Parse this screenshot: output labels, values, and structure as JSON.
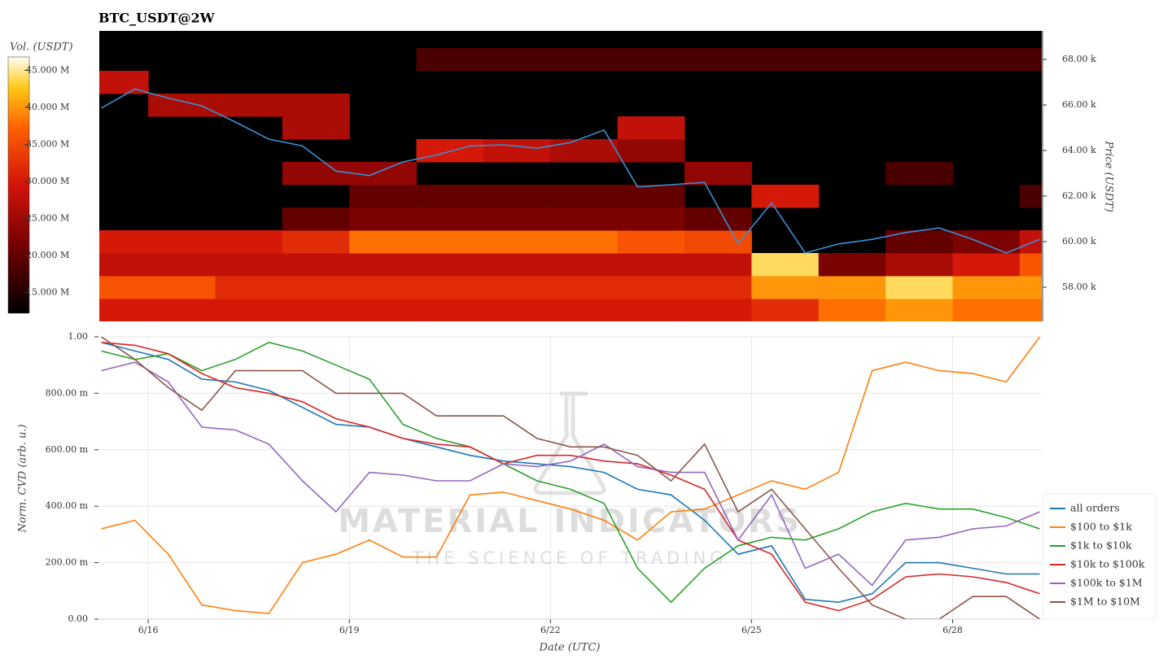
{
  "chart_data": [
    {
      "type": "heatmap",
      "title": "BTC_USDT@2W",
      "colorbar_label": "Vol. (USDT)",
      "ylabel": "Price (USDT)",
      "xlim": [
        15.27,
        29.33
      ],
      "ylim": [
        56500,
        69250
      ],
      "yticks": [
        {
          "value": 58000,
          "label": "58.00 k"
        },
        {
          "value": 60000,
          "label": "60.00 k"
        },
        {
          "value": 62000,
          "label": "62.00 k"
        },
        {
          "value": 64000,
          "label": "64.00 k"
        },
        {
          "value": 66000,
          "label": "66.00 k"
        },
        {
          "value": 68000,
          "label": "68.00 k"
        }
      ],
      "zlim": [
        12200000,
        46800000
      ],
      "zticks": [
        {
          "value": 15000000,
          "label": "15.000 M"
        },
        {
          "value": 20000000,
          "label": "20.000 M"
        },
        {
          "value": 25000000,
          "label": "25.000 M"
        },
        {
          "value": 30000000,
          "label": "30.000 M"
        },
        {
          "value": 35000000,
          "label": "35.000 M"
        },
        {
          "value": 40000000,
          "label": "40.000 M"
        },
        {
          "value": 45000000,
          "label": "45.000 M"
        }
      ],
      "x_edges": [
        15.27,
        16,
        17,
        18,
        19,
        20,
        21,
        22,
        23,
        24,
        25,
        26,
        27,
        28,
        29,
        29.33
      ],
      "y": [
        57000,
        58000,
        59000,
        60000,
        61000,
        62000,
        63000,
        64000,
        65000,
        66000,
        67000,
        68000
      ],
      "z": [
        [
          30000000,
          30000000,
          30000000,
          30000000,
          30000000,
          30000000,
          30000000,
          30000000,
          30000000,
          30000000,
          32000000,
          38000000,
          40000000,
          38000000,
          38000000
        ],
        [
          36000000,
          36000000,
          32000000,
          32000000,
          32000000,
          32000000,
          32000000,
          32000000,
          32000000,
          32000000,
          40000000,
          40000000,
          44000000,
          40000000,
          40000000
        ],
        [
          28000000,
          28000000,
          28000000,
          28000000,
          28000000,
          28000000,
          28000000,
          28000000,
          28000000,
          28000000,
          44000000,
          22000000,
          26000000,
          30000000,
          36000000
        ],
        [
          30000000,
          30000000,
          30000000,
          32000000,
          38000000,
          38000000,
          38000000,
          38000000,
          36000000,
          35000000,
          null,
          null,
          20000000,
          22000000,
          28000000
        ],
        [
          null,
          null,
          null,
          20000000,
          22000000,
          22000000,
          22000000,
          22000000,
          22000000,
          20000000,
          null,
          null,
          null,
          null,
          null
        ],
        [
          null,
          null,
          null,
          null,
          20000000,
          20000000,
          20000000,
          20000000,
          20000000,
          null,
          30000000,
          null,
          null,
          null,
          18000000
        ],
        [
          null,
          null,
          null,
          24000000,
          24000000,
          null,
          null,
          null,
          null,
          24000000,
          null,
          null,
          18000000,
          null,
          null
        ],
        [
          null,
          null,
          null,
          null,
          null,
          30000000,
          28000000,
          26000000,
          24000000,
          null,
          null,
          null,
          null,
          null,
          null
        ],
        [
          null,
          null,
          null,
          26000000,
          null,
          null,
          null,
          null,
          28000000,
          null,
          null,
          null,
          null,
          null,
          null
        ],
        [
          null,
          26000000,
          26000000,
          26000000,
          null,
          null,
          null,
          null,
          null,
          null,
          null,
          null,
          null,
          null,
          null
        ],
        [
          28000000,
          null,
          null,
          null,
          null,
          null,
          null,
          null,
          null,
          null,
          null,
          null,
          null,
          null,
          null
        ],
        [
          null,
          null,
          null,
          null,
          null,
          18000000,
          18000000,
          18000000,
          18000000,
          18000000,
          18000000,
          18000000,
          18000000,
          18000000,
          18000000
        ]
      ],
      "x": [
        15.3,
        15.8,
        16.3,
        16.8,
        17.3,
        17.8,
        18.3,
        18.8,
        19.3,
        19.8,
        20.3,
        20.8,
        21.3,
        21.8,
        22.3,
        22.8,
        23.3,
        23.8,
        24.3,
        24.8,
        25.3,
        25.8,
        26.3,
        26.8,
        27.3,
        27.8,
        28.3,
        28.8,
        29.3
      ],
      "price": {
        "color": "#3b8fd4",
        "values": [
          65860,
          66700,
          66300,
          65960,
          65250,
          64500,
          64200,
          63100,
          62900,
          63500,
          63800,
          64200,
          64250,
          64100,
          64350,
          64900,
          62400,
          62500,
          62600,
          59900,
          61700,
          59500,
          59900,
          60100,
          60400,
          60600,
          60100,
          59500,
          60100
        ]
      }
    },
    {
      "type": "line",
      "xlabel": "Date (UTC)",
      "ylabel": "Norm. CVD (arb. u.)",
      "xlim": [
        15.27,
        29.33
      ],
      "xticks": [
        {
          "value": 16,
          "label": "6/16"
        },
        {
          "value": 19,
          "label": "6/19"
        },
        {
          "value": 22,
          "label": "6/22"
        },
        {
          "value": 25,
          "label": "6/25"
        },
        {
          "value": 28,
          "label": "6/28"
        }
      ],
      "ylim": [
        0,
        1
      ],
      "yticks": [
        {
          "value": 0,
          "label": "0.00"
        },
        {
          "value": 0.2,
          "label": "200.00 m"
        },
        {
          "value": 0.4,
          "label": "400.00 m"
        },
        {
          "value": 0.6,
          "label": "600.00 m"
        },
        {
          "value": 0.8,
          "label": "800.00 m"
        },
        {
          "value": 1,
          "label": "1.00"
        }
      ],
      "grid": true,
      "legend": "right",
      "watermark": {
        "title": "MATERIAL INDICATORS",
        "subtitle": "THE SCIENCE OF TRADING"
      },
      "x": [
        15.3,
        15.8,
        16.3,
        16.8,
        17.3,
        17.8,
        18.3,
        18.8,
        19.3,
        19.8,
        20.3,
        20.8,
        21.3,
        21.8,
        22.3,
        22.8,
        23.3,
        23.8,
        24.3,
        24.8,
        25.3,
        25.8,
        26.3,
        26.8,
        27.3,
        27.8,
        28.3,
        28.8,
        29.3
      ],
      "series": [
        {
          "name": "all orders",
          "color": "#1f77b4",
          "values": [
            0.98,
            0.95,
            0.92,
            0.85,
            0.84,
            0.81,
            0.75,
            0.69,
            0.68,
            0.64,
            0.61,
            0.58,
            0.56,
            0.55,
            0.54,
            0.52,
            0.46,
            0.44,
            0.35,
            0.23,
            0.26,
            0.07,
            0.06,
            0.09,
            0.2,
            0.2,
            0.18,
            0.16,
            0.16
          ]
        },
        {
          "name": "$100 to $1k",
          "color": "#ff7f0e",
          "values": [
            0.32,
            0.35,
            0.23,
            0.05,
            0.03,
            0.02,
            0.2,
            0.23,
            0.28,
            0.22,
            0.22,
            0.44,
            0.45,
            0.42,
            0.39,
            0.35,
            0.28,
            0.38,
            0.39,
            0.44,
            0.49,
            0.46,
            0.52,
            0.88,
            0.91,
            0.88,
            0.87,
            0.84,
            1.0
          ]
        },
        {
          "name": "$1k to $10k",
          "color": "#2ca02c",
          "values": [
            0.95,
            0.92,
            0.94,
            0.88,
            0.92,
            0.98,
            0.95,
            0.9,
            0.85,
            0.69,
            0.64,
            0.61,
            0.55,
            0.49,
            0.46,
            0.41,
            0.18,
            0.06,
            0.18,
            0.26,
            0.29,
            0.28,
            0.32,
            0.38,
            0.41,
            0.39,
            0.39,
            0.36,
            0.32
          ]
        },
        {
          "name": "$10k to $100k",
          "color": "#d62728",
          "values": [
            0.98,
            0.97,
            0.94,
            0.87,
            0.82,
            0.8,
            0.77,
            0.71,
            0.68,
            0.64,
            0.62,
            0.61,
            0.55,
            0.58,
            0.58,
            0.56,
            0.55,
            0.51,
            0.46,
            0.28,
            0.23,
            0.06,
            0.03,
            0.07,
            0.15,
            0.16,
            0.15,
            0.13,
            0.09
          ]
        },
        {
          "name": "$100k to $1M",
          "color": "#9467bd",
          "values": [
            0.88,
            0.91,
            0.84,
            0.68,
            0.67,
            0.62,
            0.49,
            0.38,
            0.52,
            0.51,
            0.49,
            0.49,
            0.55,
            0.54,
            0.56,
            0.62,
            0.54,
            0.52,
            0.52,
            0.28,
            0.44,
            0.18,
            0.23,
            0.12,
            0.28,
            0.29,
            0.32,
            0.33,
            0.38
          ]
        },
        {
          "name": "$1M to $10M",
          "color": "#8c564b",
          "values": [
            1.0,
            0.92,
            0.82,
            0.74,
            0.88,
            0.88,
            0.88,
            0.8,
            0.8,
            0.8,
            0.72,
            0.72,
            0.72,
            0.64,
            0.61,
            0.61,
            0.58,
            0.49,
            0.62,
            0.38,
            0.46,
            0.32,
            0.18,
            0.05,
            0.0,
            0.0,
            0.08,
            0.08,
            0.0
          ]
        }
      ]
    }
  ]
}
